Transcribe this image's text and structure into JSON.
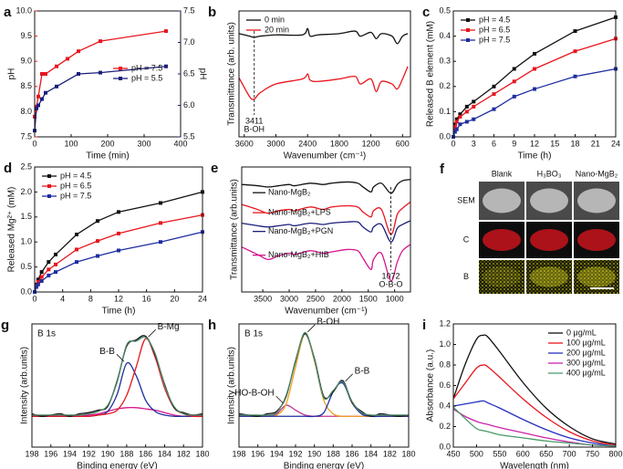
{
  "chart_data": [
    {
      "type": "line",
      "panel": "a",
      "xlabel": "Time (min)",
      "ylabel": "pH",
      "y2label": "pH",
      "axis_colors": true,
      "marker": "square",
      "legend": "center right",
      "xlim": [
        0,
        400
      ],
      "xticks": [
        0,
        100,
        200,
        300,
        400
      ],
      "ylim": [
        7.5,
        10
      ],
      "yticks": [
        7.5,
        {
          "value": 8,
          "label": "8.0"
        },
        8.5,
        {
          "value": 9,
          "label": "9.0"
        },
        9.5,
        {
          "value": 10,
          "label": "10.0"
        }
      ],
      "y2lim": [
        5.5,
        7.5
      ],
      "y2ticks": [
        5.5,
        {
          "value": 6,
          "label": "6.0"
        },
        6.5,
        {
          "value": 7,
          "label": "7.0"
        },
        7.5
      ],
      "series": [
        {
          "name": "pH = 7.5",
          "color": "#e8161e",
          "x": [
            0,
            5,
            10,
            20,
            30,
            60,
            90,
            120,
            180,
            360
          ],
          "values": [
            7.9,
            8.1,
            8.3,
            8.75,
            8.75,
            8.9,
            9.05,
            9.2,
            9.4,
            9.6
          ]
        },
        {
          "name": "pH = 5.5",
          "color": "#1b1f7a",
          "axis": "y2",
          "x": [
            0,
            5,
            10,
            20,
            30,
            60,
            120,
            180,
            360
          ],
          "values": [
            5.6,
            5.95,
            6.0,
            6.1,
            6.2,
            6.3,
            6.5,
            6.52,
            6.62
          ]
        }
      ]
    },
    {
      "type": "line",
      "panel": "b",
      "xlabel": "Wavenumber (cm⁻¹)",
      "ylabel": "Transmittance (arb. units)",
      "legend": "upper left",
      "smooth": true,
      "xlim": [
        3700,
        450
      ],
      "xticks": [
        3600,
        3000,
        2400,
        1800,
        1200,
        600
      ],
      "ylim": [
        0,
        10
      ],
      "x": [
        3700,
        3500,
        3411,
        3300,
        3000,
        2500,
        2400,
        2350,
        2200,
        1800,
        1500,
        1400,
        1200,
        1100,
        1000,
        800,
        700,
        600,
        500
      ],
      "series": [
        {
          "name": "0 min",
          "color": "#111111",
          "values": [
            8.2,
            8.0,
            7.9,
            8.0,
            8.1,
            8.1,
            8.6,
            8.0,
            8.1,
            8.2,
            8.4,
            8.0,
            8.3,
            7.8,
            8.2,
            8.0,
            7.4,
            8.0,
            8.2
          ]
        },
        {
          "name": "20 min",
          "color": "#e8161e",
          "values": [
            4.7,
            3.2,
            3.0,
            3.5,
            4.2,
            4.6,
            5.0,
            4.5,
            4.4,
            4.6,
            4.8,
            4.2,
            4.6,
            3.6,
            4.4,
            4.2,
            3.8,
            4.6,
            5.6
          ]
        }
      ],
      "annotations": [
        {
          "x": 3411,
          "label": "B-OH"
        }
      ]
    },
    {
      "type": "line",
      "panel": "c",
      "xlabel": "Time (h)",
      "ylabel": "Released B element (mM)",
      "marker": "square",
      "legend": "upper left",
      "xlim": [
        0,
        24
      ],
      "xticks": [
        0,
        3,
        6,
        9,
        12,
        15,
        18,
        21,
        24
      ],
      "ylim": [
        0,
        0.5
      ],
      "yticks": [
        {
          "value": 0,
          "label": "0.0"
        },
        0.1,
        0.2,
        0.3,
        0.4,
        0.5
      ],
      "x": [
        0,
        0.25,
        0.5,
        1,
        2,
        3,
        6,
        9,
        12,
        18,
        24
      ],
      "series": [
        {
          "name": "pH = 4.5",
          "color": "#111111",
          "values": [
            0,
            0.05,
            0.07,
            0.09,
            0.12,
            0.14,
            0.2,
            0.27,
            0.33,
            0.42,
            0.475
          ]
        },
        {
          "name": "pH = 6.5",
          "color": "#e8161e",
          "values": [
            0,
            0.04,
            0.06,
            0.08,
            0.1,
            0.12,
            0.17,
            0.22,
            0.27,
            0.34,
            0.39
          ]
        },
        {
          "name": "pH = 7.5",
          "color": "#1f2ea0",
          "values": [
            0,
            0.02,
            0.03,
            0.05,
            0.06,
            0.07,
            0.11,
            0.16,
            0.19,
            0.24,
            0.27
          ]
        }
      ]
    },
    {
      "type": "line",
      "panel": "d",
      "xlabel": "Time (h)",
      "ylabel": "Released Mg²⁺ (mM)",
      "marker": "square",
      "legend": "upper left",
      "xlim": [
        0,
        24
      ],
      "xticks": [
        0,
        4,
        8,
        12,
        16,
        20,
        24
      ],
      "ylim": [
        0,
        2.5
      ],
      "yticks": [
        {
          "value": 0,
          "label": "0.0"
        },
        0.5,
        {
          "value": 1,
          "label": "1.0"
        },
        1.5,
        {
          "value": 2,
          "label": "2.0"
        },
        2.5
      ],
      "x": [
        0,
        0.25,
        0.5,
        1,
        2,
        3,
        6,
        9,
        12,
        18,
        24
      ],
      "series": [
        {
          "name": "pH = 4.5",
          "color": "#111111",
          "values": [
            0,
            0.15,
            0.25,
            0.4,
            0.6,
            0.75,
            1.15,
            1.42,
            1.6,
            1.78,
            2.0
          ]
        },
        {
          "name": "pH = 6.5",
          "color": "#e8161e",
          "values": [
            0,
            0.12,
            0.2,
            0.3,
            0.45,
            0.55,
            0.85,
            1.02,
            1.17,
            1.38,
            1.54
          ]
        },
        {
          "name": "pH = 7.5",
          "color": "#1f2ea0",
          "values": [
            0,
            0.1,
            0.15,
            0.22,
            0.33,
            0.4,
            0.6,
            0.72,
            0.83,
            1.0,
            1.2
          ]
        }
      ]
    },
    {
      "type": "line",
      "panel": "e",
      "xlabel": "Wavenumber (cm⁻¹)",
      "ylabel": "Transmittance (arb.units)",
      "legend": "inline",
      "smooth": true,
      "xlim": [
        3900,
        700
      ],
      "xticks": [
        3500,
        3000,
        2500,
        2000,
        1500,
        1000
      ],
      "ylim": [
        0,
        10
      ],
      "x": [
        3900,
        3600,
        3400,
        3200,
        3000,
        2900,
        2600,
        2360,
        2200,
        1900,
        1700,
        1600,
        1450,
        1400,
        1250,
        1072,
        950,
        850,
        700
      ],
      "series": [
        {
          "name": "Nano-MgB₂",
          "color": "#111111",
          "values": [
            8.6,
            8.5,
            8.4,
            8.5,
            8.6,
            8.5,
            8.7,
            8.6,
            8.7,
            8.8,
            8.7,
            8.4,
            8.0,
            8.4,
            8.7,
            7.9,
            8.6,
            8.9,
            9.0
          ]
        },
        {
          "name": "Nano-MgB₂+LPS",
          "color": "#e8161e",
          "values": [
            7.0,
            6.6,
            6.3,
            6.5,
            6.6,
            6.5,
            6.8,
            6.6,
            6.8,
            6.9,
            6.8,
            6.4,
            6.0,
            6.5,
            6.6,
            4.6,
            6.2,
            6.7,
            7.2
          ]
        },
        {
          "name": "Nano-MgB₂+PGN",
          "color": "#1b1f7a",
          "values": [
            5.5,
            5.3,
            5.2,
            5.3,
            5.4,
            5.3,
            5.5,
            5.4,
            5.5,
            5.6,
            5.6,
            5.2,
            4.8,
            5.2,
            5.4,
            4.0,
            5.1,
            5.4,
            5.7
          ]
        },
        {
          "name": "Nano-MgB₂+HIB",
          "color": "#d6168f",
          "values": [
            3.6,
            3.0,
            2.6,
            2.9,
            3.1,
            3.0,
            3.3,
            3.1,
            3.2,
            3.4,
            3.3,
            2.7,
            1.8,
            2.6,
            3.1,
            0.9,
            2.4,
            3.3,
            3.8
          ]
        }
      ],
      "annotations": [
        {
          "x": 1072,
          "label": "O-B-O"
        }
      ]
    },
    {
      "type": "line",
      "panel": "g",
      "note": "B 1s",
      "xlabel": "Binding energy (eV)",
      "ylabel": "Intensity (arb.units)",
      "legend": "peaks",
      "smooth": true,
      "xlim": [
        198,
        180
      ],
      "xticks": [
        198,
        196,
        194,
        192,
        190,
        188,
        186,
        184,
        182,
        180
      ],
      "ylim": [
        0,
        10
      ],
      "x": [
        198,
        197,
        196,
        195,
        194,
        193,
        192,
        191,
        190,
        189,
        188,
        187,
        186,
        185,
        184,
        183,
        182,
        181,
        180
      ],
      "series": [
        {
          "color": "#d6168f",
          "values": [
            2.5,
            2.5,
            2.5,
            2.5,
            2.5,
            2.5,
            2.6,
            2.7,
            2.9,
            3.1,
            3.2,
            3.2,
            3.1,
            3.0,
            2.8,
            2.6,
            2.5,
            2.5,
            2.5
          ]
        },
        {
          "name": "B-B",
          "color": "#1f2ea0",
          "values": [
            2.5,
            2.5,
            2.5,
            2.5,
            2.5,
            2.5,
            2.5,
            2.6,
            2.9,
            4.3,
            6.8,
            5.8,
            3.8,
            2.9,
            2.6,
            2.5,
            2.5,
            2.5,
            2.5
          ]
        },
        {
          "name": "B-Mg",
          "color": "#e8161e",
          "values": [
            2.5,
            2.5,
            2.5,
            2.5,
            2.5,
            2.5,
            2.5,
            2.6,
            2.7,
            3.0,
            4.2,
            6.5,
            8.8,
            7.3,
            4.8,
            3.2,
            2.7,
            2.5,
            2.5
          ]
        },
        {
          "color": "#111111",
          "values": [
            2.7,
            2.5,
            2.6,
            2.7,
            2.5,
            2.7,
            2.8,
            3.0,
            3.3,
            5.4,
            8.2,
            8.7,
            9.0,
            7.5,
            5.1,
            3.2,
            2.8,
            2.6,
            2.7
          ]
        },
        {
          "color": "#4f8a6b",
          "values": [
            2.6,
            2.6,
            2.6,
            2.6,
            2.6,
            2.6,
            2.7,
            2.9,
            3.4,
            5.3,
            8.3,
            8.6,
            8.9,
            7.6,
            5.0,
            3.3,
            2.7,
            2.6,
            2.6
          ]
        }
      ]
    },
    {
      "type": "line",
      "panel": "h",
      "note": "B 1s",
      "xlabel": "Binding energy (eV)",
      "ylabel": "Intensity (arb.units)",
      "legend": "peaks",
      "smooth": true,
      "xlim": [
        198,
        180
      ],
      "xticks": [
        198,
        196,
        194,
        192,
        190,
        188,
        186,
        184,
        182,
        180
      ],
      "ylim": [
        0,
        10
      ],
      "x": [
        198,
        197,
        196,
        195,
        194,
        193,
        192,
        191,
        190,
        189,
        188,
        187,
        186,
        185,
        184,
        183,
        182,
        181,
        180
      ],
      "series": [
        {
          "name": "HO-B-OH",
          "color": "#c0389a",
          "values": [
            2.5,
            2.5,
            2.5,
            2.5,
            2.7,
            3.4,
            3.0,
            2.6,
            2.5,
            2.5,
            2.5,
            2.5,
            2.5,
            2.5,
            2.5,
            2.5,
            2.5,
            2.5,
            2.5
          ]
        },
        {
          "name": "B-OH",
          "color": "#f0a020",
          "values": [
            2.5,
            2.5,
            2.5,
            2.5,
            2.6,
            3.5,
            6.5,
            9.2,
            7.0,
            3.8,
            2.7,
            2.5,
            2.5,
            2.5,
            2.5,
            2.5,
            2.5,
            2.5,
            2.5
          ]
        },
        {
          "name": "B-B",
          "color": "#1f2ea0",
          "values": [
            2.5,
            2.5,
            2.5,
            2.5,
            2.5,
            2.5,
            2.5,
            2.5,
            2.5,
            2.8,
            4.5,
            5.2,
            3.6,
            2.7,
            2.5,
            2.5,
            2.5,
            2.5,
            2.5
          ]
        },
        {
          "color": "#111111",
          "values": [
            2.7,
            2.6,
            2.5,
            2.7,
            2.9,
            4.1,
            7.0,
            9.2,
            7.2,
            4.1,
            4.5,
            5.4,
            3.6,
            2.9,
            2.5,
            2.7,
            2.6,
            2.5,
            2.6
          ]
        },
        {
          "color": "#4f8a6b",
          "values": [
            2.6,
            2.6,
            2.6,
            2.6,
            2.8,
            4.2,
            6.9,
            9.3,
            7.1,
            4.0,
            4.6,
            5.3,
            3.7,
            2.8,
            2.6,
            2.6,
            2.6,
            2.6,
            2.6
          ]
        }
      ]
    },
    {
      "type": "line",
      "panel": "i",
      "xlabel": "Wavelength (nm)",
      "ylabel": "Absorbance (a.u.)",
      "legend": "upper right",
      "smooth": true,
      "xlim": [
        450,
        800
      ],
      "xticks": [
        450,
        500,
        550,
        600,
        650,
        700,
        750,
        800
      ],
      "ylim": [
        0,
        1.2
      ],
      "yticks": [
        {
          "value": 0,
          "label": "0.0"
        },
        0.2,
        0.4,
        0.6,
        0.8,
        {
          "value": 1,
          "label": "1.0"
        },
        1.2
      ],
      "x": [
        450,
        475,
        500,
        515,
        525,
        550,
        600,
        650,
        700,
        750,
        800
      ],
      "series": [
        {
          "name": "0 μg/mL",
          "color": "#111111",
          "values": [
            0.47,
            0.8,
            1.05,
            1.09,
            1.07,
            0.93,
            0.63,
            0.38,
            0.2,
            0.08,
            0.03
          ]
        },
        {
          "name": "100 μg/mL",
          "color": "#e8161e",
          "values": [
            0.47,
            0.62,
            0.77,
            0.8,
            0.78,
            0.68,
            0.47,
            0.29,
            0.15,
            0.06,
            0.02
          ]
        },
        {
          "name": "200 μg/mL",
          "color": "#2630c0",
          "values": [
            0.4,
            0.42,
            0.44,
            0.45,
            0.43,
            0.38,
            0.27,
            0.17,
            0.09,
            0.04,
            0.01
          ]
        },
        {
          "name": "300 μg/mL",
          "color": "#cc22aa",
          "values": [
            0.37,
            0.3,
            0.25,
            0.23,
            0.22,
            0.19,
            0.14,
            0.09,
            0.05,
            0.02,
            0.01
          ]
        },
        {
          "name": "400 μg/mL",
          "color": "#4a9a6a",
          "values": [
            0.39,
            0.28,
            0.18,
            0.16,
            0.15,
            0.12,
            0.09,
            0.06,
            0.04,
            0.02,
            0.01
          ]
        }
      ]
    }
  ],
  "panel_f": {
    "panel": "f",
    "columns": [
      "Blank",
      "H₃BO₃",
      "Nano-MgB₂"
    ],
    "rows": [
      "SEM",
      "C",
      "B"
    ]
  }
}
